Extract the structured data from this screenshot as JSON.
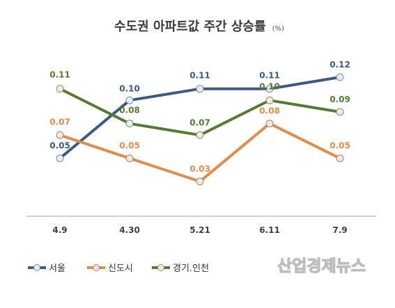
{
  "chart_data": {
    "type": "line",
    "title": "수도권 아파트값 주간 상승률",
    "title_unit": "(%)",
    "categories": [
      "4.9",
      "4.30",
      "5.21",
      "6.11",
      "7.9"
    ],
    "ylim": [
      0,
      0.13
    ],
    "grid": false,
    "legend_position": "bottom-left",
    "series": [
      {
        "name": "서울",
        "color": "#3c5a84",
        "values": [
          0.05,
          0.1,
          0.11,
          0.11,
          0.12
        ]
      },
      {
        "name": "신도시",
        "color": "#e08c4c",
        "values": [
          0.07,
          0.05,
          0.03,
          0.08,
          0.05
        ]
      },
      {
        "name": "경기.인천",
        "color": "#557a32",
        "values": [
          0.11,
          0.08,
          0.07,
          0.1,
          0.09
        ]
      }
    ]
  },
  "watermark": "산업경제뉴스"
}
